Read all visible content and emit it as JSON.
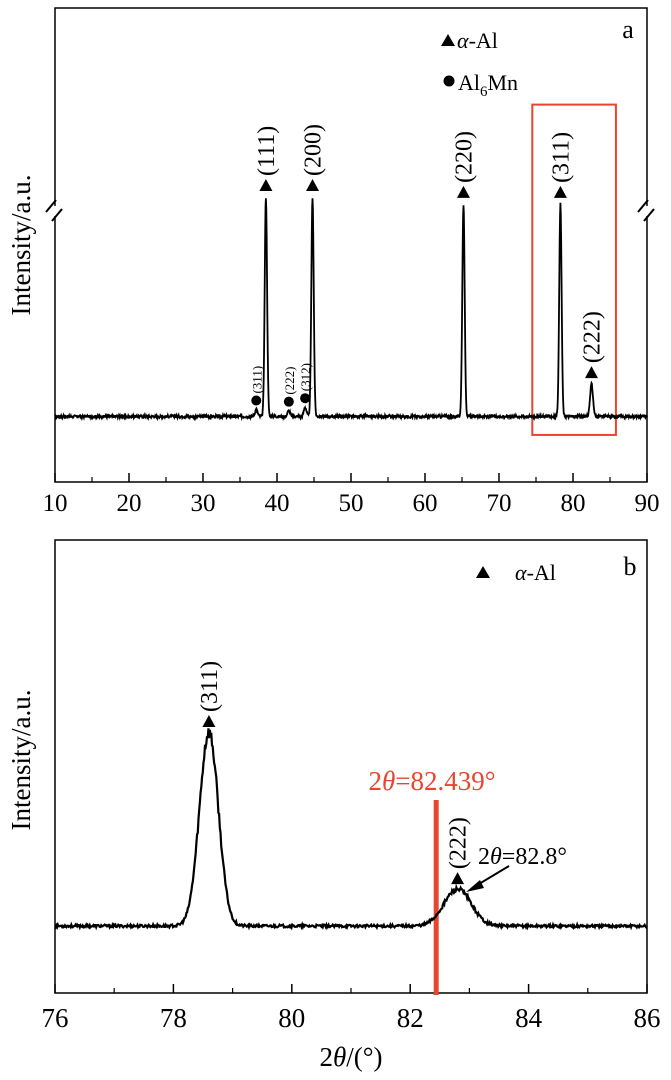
{
  "chart_data": [
    {
      "type": "line",
      "panel_label": "a",
      "ylabel": "Intensity/a.u.",
      "xlim": [
        10,
        90
      ],
      "x_ticks": [
        "10",
        "20",
        "30",
        "40",
        "50",
        "60",
        "70",
        "80",
        "90"
      ],
      "grid": false,
      "axis_break": true,
      "legend": {
        "placement": "top-right",
        "entries": [
          {
            "marker": "triangle",
            "prefix": "α",
            "rest": "-Al"
          },
          {
            "marker": "circle",
            "part1": "Al",
            "sub": "6",
            "part2": "Mn"
          }
        ]
      },
      "series": [
        {
          "baseline": 0.05,
          "peaks": [
            {
              "x": 37.2,
              "y": 0.08,
              "width": 0.18
            },
            {
              "x": 38.5,
              "y": 1.0,
              "width": 0.16
            },
            {
              "x": 41.6,
              "y": 0.075,
              "width": 0.18
            },
            {
              "x": 43.8,
              "y": 0.09,
              "width": 0.18
            },
            {
              "x": 44.8,
              "y": 1.0,
              "width": 0.16
            },
            {
              "x": 65.2,
              "y": 0.97,
              "width": 0.16
            },
            {
              "x": 78.3,
              "y": 0.97,
              "width": 0.16
            },
            {
              "x": 82.5,
              "y": 0.19,
              "width": 0.2
            }
          ]
        }
      ],
      "peak_labels": [
        {
          "text": "(311)",
          "x": 37.2,
          "y": 0.08,
          "marker": "circle",
          "size": "small"
        },
        {
          "text": "(222)",
          "x": 41.6,
          "y": 0.075,
          "marker": "circle",
          "size": "small"
        },
        {
          "text": "(312)",
          "x": 43.8,
          "y": 0.09,
          "marker": "circle",
          "size": "small"
        },
        {
          "text": "(111)",
          "x": 38.5,
          "y": 1.0,
          "marker": "triangle",
          "size": "large"
        },
        {
          "text": "(200)",
          "x": 44.8,
          "y": 1.0,
          "marker": "triangle",
          "size": "large"
        },
        {
          "text": "(220)",
          "x": 65.2,
          "y": 0.97,
          "marker": "triangle",
          "size": "large"
        },
        {
          "text": "(311)",
          "x": 78.3,
          "y": 0.97,
          "marker": "triangle",
          "size": "large"
        },
        {
          "text": "(222)",
          "x": 82.5,
          "y": 0.19,
          "marker": "triangle",
          "size": "large"
        }
      ],
      "highlight_box": {
        "x0": 74.5,
        "x1": 85.8,
        "y0": -0.03,
        "y1": 1.4,
        "color": "#e8442e"
      }
    },
    {
      "type": "line",
      "panel_label": "b",
      "xlabel_parts": [
        "2",
        "θ",
        "/(°)"
      ],
      "ylabel": "Intensity/a.u.",
      "xlim": [
        76,
        86
      ],
      "x_ticks": [
        "76",
        "78",
        "80",
        "82",
        "84",
        "86"
      ],
      "grid": false,
      "legend": {
        "placement": "top-right",
        "entries": [
          {
            "marker": "triangle",
            "prefix": "α",
            "rest": "-Al"
          }
        ]
      },
      "series": [
        {
          "baseline": 0.0,
          "peaks": [
            {
              "x": 78.6,
              "y": 1.0,
              "width": 0.16
            },
            {
              "x": 82.8,
              "y": 0.19,
              "width": 0.23
            }
          ]
        }
      ],
      "peak_labels": [
        {
          "text": "(311)",
          "x": 78.6,
          "y": 1.0,
          "marker": "triangle",
          "size": "large"
        },
        {
          "text": "(222)",
          "x": 82.8,
          "y": 0.19,
          "marker": "triangle",
          "size": "large"
        }
      ],
      "reference_line": {
        "x": 82.439,
        "color": "#e8442e",
        "label_parts": [
          "2",
          "θ",
          "=82.439°"
        ]
      },
      "annotation": {
        "label_parts": [
          "2",
          "θ",
          "=82.8°"
        ],
        "x": 82.8,
        "y": 0.19
      }
    }
  ]
}
